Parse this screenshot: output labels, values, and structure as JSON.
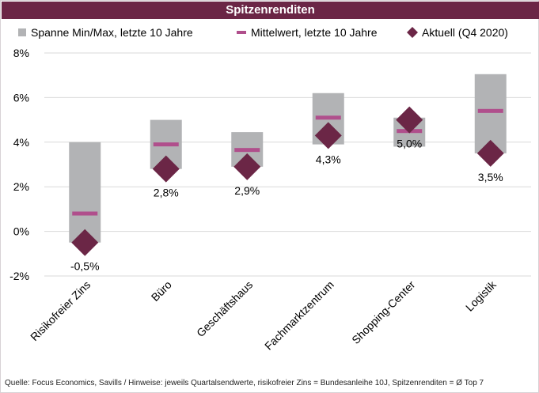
{
  "title": "Spitzenrenditen",
  "source_note": "Quelle: Focus Economics, Savills / Hinweise: jeweils Quartalsendwerte, risikofreier Zins = Bundesanleihe 10J, Spitzenrenditen = Ø Top 7",
  "colors": {
    "range": "#b2b3b5",
    "mean": "#b04f8c",
    "current": "#6b2646",
    "title_bg": "#6b2646",
    "grid": "#d9d9d9"
  },
  "chart_data": {
    "type": "bar",
    "categories": [
      "Risikofreier Zins",
      "Büro",
      "Geschäftshaus",
      "Fachmarktzentrum",
      "Shopping-Center",
      "Logistik"
    ],
    "ylim": [
      -2,
      8
    ],
    "yticks": [
      "-2%",
      "0%",
      "2%",
      "4%",
      "6%",
      "8%"
    ],
    "ytick_values": [
      -2,
      0,
      2,
      4,
      6,
      8
    ],
    "grid": true,
    "legend_position": "top",
    "series": [
      {
        "name": "Spanne Min/Max, letzte 10 Jahre",
        "kind": "range",
        "min": [
          -0.5,
          2.8,
          2.9,
          3.9,
          3.8,
          3.5
        ],
        "max": [
          4.0,
          5.0,
          4.45,
          6.2,
          5.1,
          7.05
        ]
      },
      {
        "name": "Mittelwert, letzte 10 Jahre",
        "kind": "marker-dash",
        "values": [
          0.8,
          3.9,
          3.65,
          5.1,
          4.5,
          5.4
        ]
      },
      {
        "name": "Aktuell (Q4 2020)",
        "kind": "marker-diamond",
        "values": [
          -0.5,
          2.8,
          2.9,
          4.3,
          5.0,
          3.5
        ],
        "labels": [
          "-0,5%",
          "2,8%",
          "2,9%",
          "4,3%",
          "5,0%",
          "3,5%"
        ]
      }
    ]
  }
}
